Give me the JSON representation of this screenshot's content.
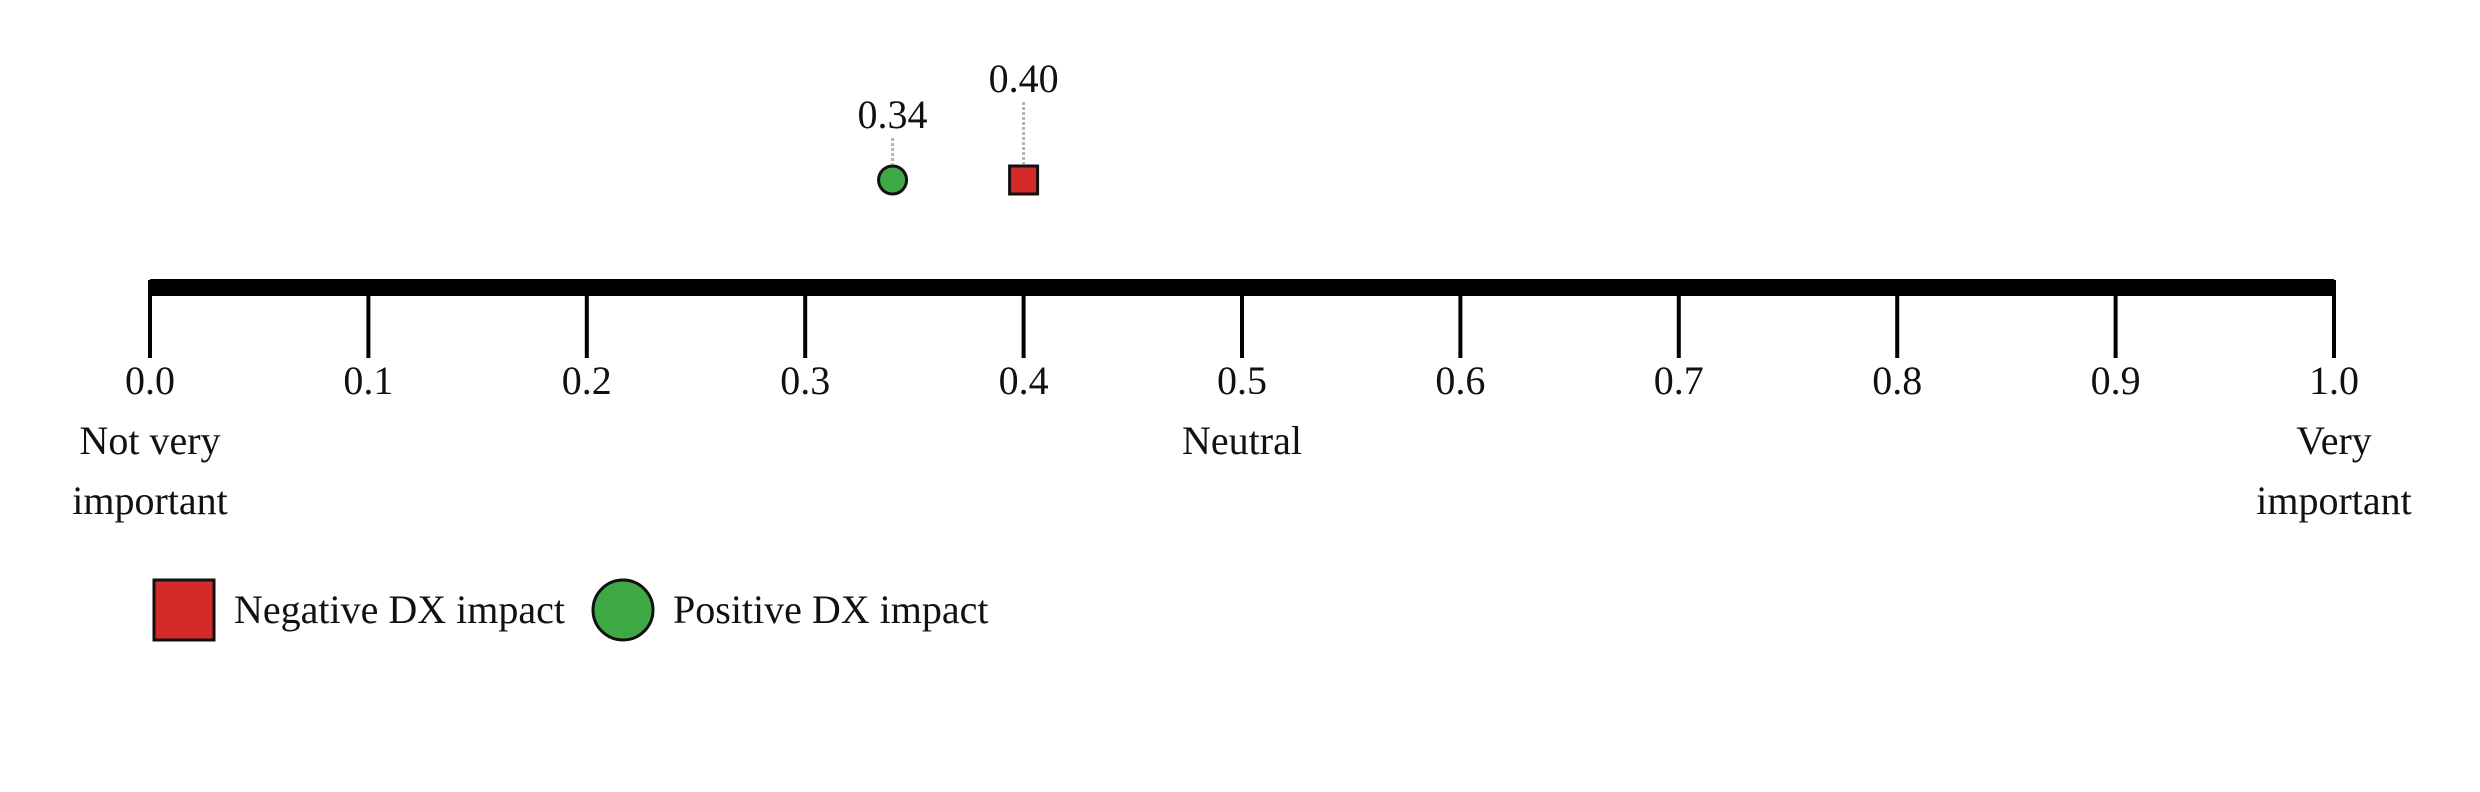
{
  "chart_data": {
    "type": "scatter",
    "title": "",
    "xlim": [
      0.0,
      1.0
    ],
    "ticks": [
      "0.0",
      "0.1",
      "0.2",
      "0.3",
      "0.4",
      "0.5",
      "0.6",
      "0.7",
      "0.8",
      "0.9",
      "1.0"
    ],
    "tick_values": [
      0.0,
      0.1,
      0.2,
      0.3,
      0.4,
      0.5,
      0.6,
      0.7,
      0.8,
      0.9,
      1.0
    ],
    "anchors": [
      {
        "x": 0.0,
        "lines": [
          "Not very",
          "important"
        ]
      },
      {
        "x": 0.5,
        "lines": [
          "Neutral"
        ]
      },
      {
        "x": 1.0,
        "lines": [
          "Very",
          "important"
        ]
      }
    ],
    "series": [
      {
        "name": "Negative DX impact",
        "marker": "square",
        "color": "#d42a2a",
        "x": 0.4,
        "label": "0.40"
      },
      {
        "name": "Positive DX impact",
        "marker": "circle",
        "color": "#3ea845",
        "x": 0.34,
        "label": "0.34"
      }
    ],
    "legend": {
      "placement": "bottom-left"
    },
    "grid": false
  }
}
